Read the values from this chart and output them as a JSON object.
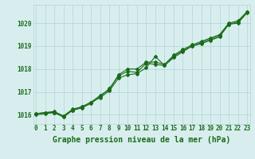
{
  "title": "Graphe pression niveau de la mer (hPa)",
  "x": [
    0,
    1,
    2,
    3,
    4,
    5,
    6,
    7,
    8,
    9,
    10,
    11,
    12,
    13,
    14,
    15,
    16,
    17,
    18,
    19,
    20,
    21,
    22,
    23
  ],
  "line1": [
    1016.05,
    1016.1,
    1016.15,
    1015.95,
    1016.25,
    1016.35,
    1016.55,
    1016.75,
    1017.05,
    1017.6,
    1017.75,
    1017.8,
    1018.05,
    1018.55,
    1018.15,
    1018.5,
    1018.75,
    1019.0,
    1019.1,
    1019.25,
    1019.4,
    1019.95,
    1020.0,
    1020.45
  ],
  "line2": [
    1016.05,
    1016.1,
    1016.1,
    1015.95,
    1016.2,
    1016.3,
    1016.5,
    1016.8,
    1017.15,
    1017.7,
    1017.9,
    1017.85,
    1018.25,
    1018.2,
    1018.15,
    1018.55,
    1018.8,
    1019.0,
    1019.15,
    1019.3,
    1019.45,
    1019.95,
    1020.05,
    1020.5
  ],
  "line3": [
    1016.0,
    1016.05,
    1016.1,
    1015.9,
    1016.2,
    1016.35,
    1016.55,
    1016.85,
    1017.1,
    1017.75,
    1018.0,
    1018.0,
    1018.3,
    1018.3,
    1018.2,
    1018.6,
    1018.85,
    1019.05,
    1019.2,
    1019.35,
    1019.5,
    1020.0,
    1020.1,
    1020.5
  ],
  "line_color": "#1a6b1a",
  "bg_color": "#d8eeee",
  "grid_color": "#b8d8d8",
  "ylim": [
    1015.6,
    1020.8
  ],
  "yticks": [
    1016,
    1017,
    1018,
    1019,
    1020
  ],
  "xticks": [
    0,
    1,
    2,
    3,
    4,
    5,
    6,
    7,
    8,
    9,
    10,
    11,
    12,
    13,
    14,
    15,
    16,
    17,
    18,
    19,
    20,
    21,
    22,
    23
  ],
  "marker": "D",
  "markersize": 2.0,
  "linewidth": 0.8,
  "tick_fontsize": 5.5,
  "xlabel_fontsize": 7.0
}
